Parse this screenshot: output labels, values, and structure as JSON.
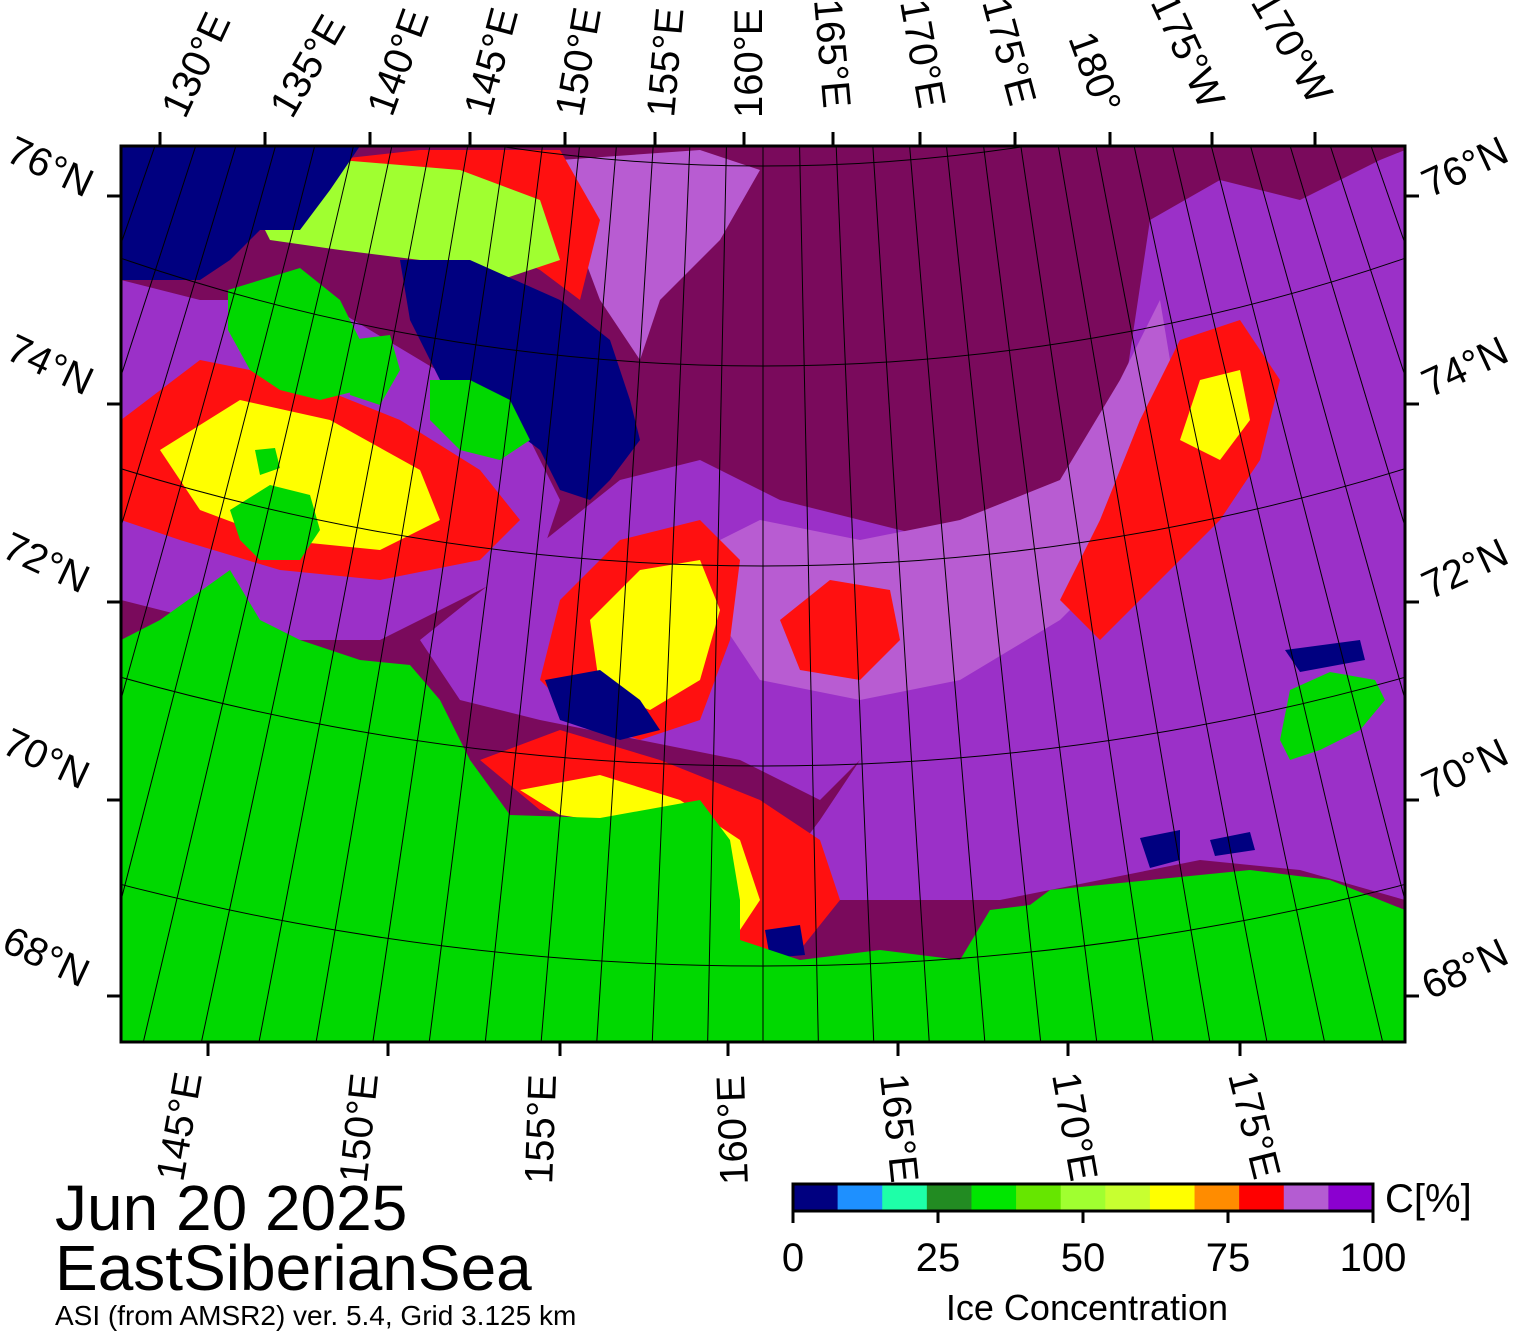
{
  "date": "Jun 20 2025",
  "region": "EastSiberianSea",
  "product": "ASI (from AMSR2) ver. 5.4,  Grid 3.125 km",
  "colorbar": {
    "unit": "C[%]",
    "title": "Ice Concentration",
    "ticks": [
      "0",
      "25",
      "50",
      "75",
      "100"
    ],
    "colors": [
      "#000080",
      "#1e90ff",
      "#1effa8",
      "#228b22",
      "#00e600",
      "#66e600",
      "#a0ff30",
      "#c8ff30",
      "#ffff00",
      "#ff8c00",
      "#ff0000",
      "#b45cd2",
      "#8b00d0"
    ]
  },
  "lon_top": [
    "130°E",
    "135°E",
    "140°E",
    "145°E",
    "150°E",
    "155°E",
    "160°E",
    "165°E",
    "170°E",
    "175°E",
    "180°",
    "175°W",
    "170°W"
  ],
  "lon_bottom": [
    "145°E",
    "150°E",
    "155°E",
    "160°E",
    "165°E",
    "170°E",
    "175°E"
  ],
  "lat_left": [
    "76°N",
    "74°N",
    "72°N",
    "70°N",
    "68°N"
  ],
  "lat_right": [
    "76°N",
    "74°N",
    "72°N",
    "70°N",
    "68°N"
  ],
  "map_colors": {
    "land": "#00d800",
    "open_water": "#000080",
    "ice_high": "#7a0a5c",
    "ice_mid": "#9b30c8",
    "ice_mid2": "#b85cd2",
    "ice_low_red": "#ff1010",
    "ice_yellow": "#ffff00",
    "ice_lime": "#a0ff30"
  }
}
